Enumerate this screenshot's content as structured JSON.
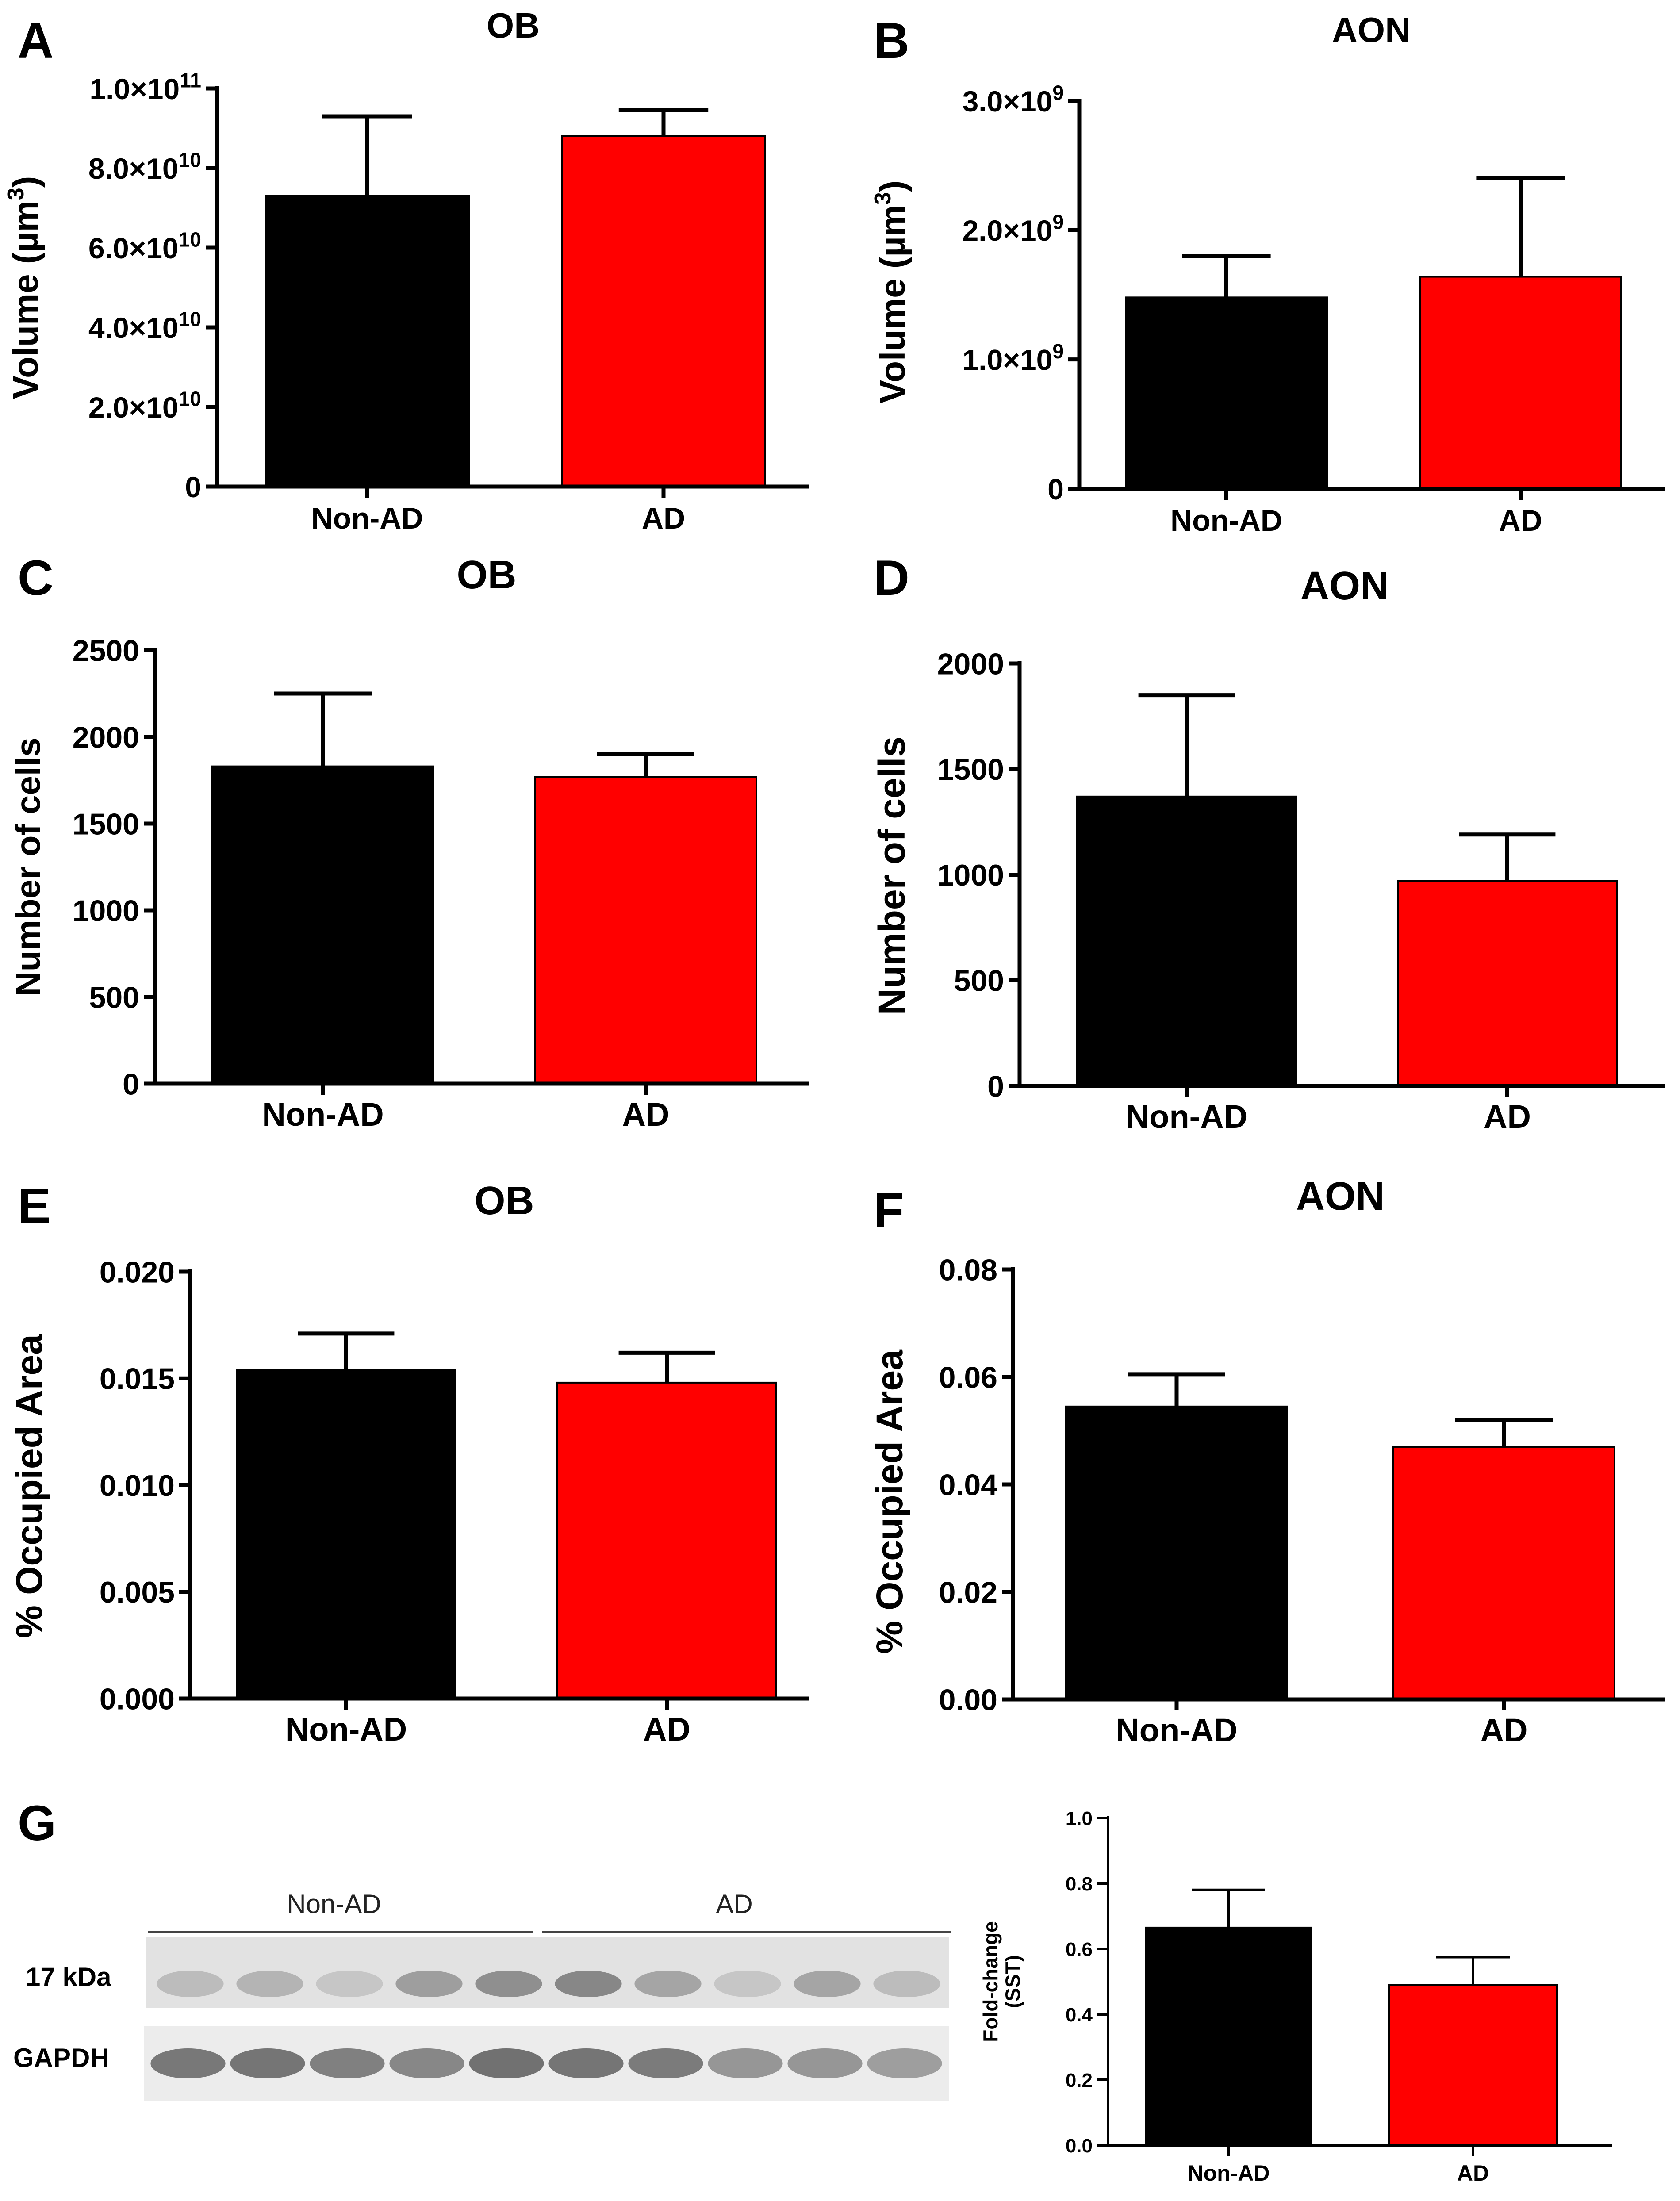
{
  "chart_data": [
    {
      "panel": "A",
      "type": "bar",
      "title": "OB",
      "ylabel": "Volume (µm³)",
      "ylabel_main": "Volume (µm",
      "ylabel_sup": "3",
      "ylabel_end": ")",
      "ylim": [
        0,
        100000000000
      ],
      "yticks": [
        {
          "v": 0,
          "b": "0",
          "e": ""
        },
        {
          "v": 20000000000,
          "b": "2.0×10",
          "e": "10"
        },
        {
          "v": 40000000000,
          "b": "4.0×10",
          "e": "10"
        },
        {
          "v": 60000000000,
          "b": "6.0×10",
          "e": "10"
        },
        {
          "v": 80000000000,
          "b": "8.0×10",
          "e": "10"
        },
        {
          "v": 100000000000,
          "b": "1.0×10",
          "e": "11"
        }
      ],
      "categories": [
        "Non-AD",
        "AD"
      ],
      "values": [
        73000000000,
        88000000000
      ],
      "errors": [
        20000000000,
        6500000000
      ],
      "colors": [
        "#000000",
        "#ff0000"
      ]
    },
    {
      "panel": "B",
      "type": "bar",
      "title": "AON",
      "ylabel": "Volume (µm³)",
      "ylabel_main": "Volume (µm",
      "ylabel_sup": "3",
      "ylabel_end": ")",
      "ylim": [
        0,
        3000000000
      ],
      "yticks": [
        {
          "v": 0,
          "b": "0",
          "e": ""
        },
        {
          "v": 1000000000,
          "b": "1.0×10",
          "e": "9"
        },
        {
          "v": 2000000000,
          "b": "2.0×10",
          "e": "9"
        },
        {
          "v": 3000000000,
          "b": "3.0×10",
          "e": "9"
        }
      ],
      "categories": [
        "Non-AD",
        "AD"
      ],
      "values": [
        1480000000,
        1640000000
      ],
      "errors": [
        320000000,
        760000000
      ],
      "colors": [
        "#000000",
        "#ff0000"
      ]
    },
    {
      "panel": "C",
      "type": "bar",
      "title": "OB",
      "ylabel": "Number of cells",
      "ylim": [
        0,
        2500
      ],
      "yticks": [
        {
          "v": 0,
          "b": "0"
        },
        {
          "v": 500,
          "b": "500"
        },
        {
          "v": 1000,
          "b": "1000"
        },
        {
          "v": 1500,
          "b": "1500"
        },
        {
          "v": 2000,
          "b": "2000"
        },
        {
          "v": 2500,
          "b": "2500"
        }
      ],
      "categories": [
        "Non-AD",
        "AD"
      ],
      "values": [
        1830,
        1770
      ],
      "errors": [
        420,
        130
      ],
      "colors": [
        "#000000",
        "#ff0000"
      ]
    },
    {
      "panel": "D",
      "type": "bar",
      "title": "AON",
      "ylabel": "Number of cells",
      "ylim": [
        0,
        2000
      ],
      "yticks": [
        {
          "v": 0,
          "b": "0"
        },
        {
          "v": 500,
          "b": "500"
        },
        {
          "v": 1000,
          "b": "1000"
        },
        {
          "v": 1500,
          "b": "1500"
        },
        {
          "v": 2000,
          "b": "2000"
        }
      ],
      "categories": [
        "Non-AD",
        "AD"
      ],
      "values": [
        1370,
        970
      ],
      "errors": [
        480,
        220
      ],
      "colors": [
        "#000000",
        "#ff0000"
      ]
    },
    {
      "panel": "E",
      "type": "bar",
      "title": "OB",
      "ylabel": "% Occupied Area",
      "ylim": [
        0,
        0.02
      ],
      "yticks": [
        {
          "v": 0,
          "b": "0.000"
        },
        {
          "v": 0.005,
          "b": "0.005"
        },
        {
          "v": 0.01,
          "b": "0.010"
        },
        {
          "v": 0.015,
          "b": "0.015"
        },
        {
          "v": 0.02,
          "b": "0.020"
        }
      ],
      "categories": [
        "Non-AD",
        "AD"
      ],
      "values": [
        0.0154,
        0.0148
      ],
      "errors": [
        0.0017,
        0.0014
      ],
      "colors": [
        "#000000",
        "#ff0000"
      ]
    },
    {
      "panel": "F",
      "type": "bar",
      "title": "AON",
      "ylabel": "% Occupied Area",
      "ylim": [
        0,
        0.08
      ],
      "yticks": [
        {
          "v": 0,
          "b": "0.00"
        },
        {
          "v": 0.02,
          "b": "0.02"
        },
        {
          "v": 0.04,
          "b": "0.04"
        },
        {
          "v": 0.06,
          "b": "0.06"
        },
        {
          "v": 0.08,
          "b": "0.08"
        }
      ],
      "categories": [
        "Non-AD",
        "AD"
      ],
      "values": [
        0.0545,
        0.047
      ],
      "errors": [
        0.006,
        0.005
      ],
      "colors": [
        "#000000",
        "#ff0000"
      ]
    },
    {
      "panel": "G",
      "type": "bar",
      "title": "",
      "ylabel": "Fold-change (SST)",
      "ylabel_line1": "Fold-change",
      "ylabel_line2": "(SST)",
      "ylim": [
        0,
        1.0
      ],
      "yticks": [
        {
          "v": 0,
          "b": "0.0"
        },
        {
          "v": 0.2,
          "b": "0.2"
        },
        {
          "v": 0.4,
          "b": "0.4"
        },
        {
          "v": 0.6,
          "b": "0.6"
        },
        {
          "v": 0.8,
          "b": "0.8"
        },
        {
          "v": 1.0,
          "b": "1.0"
        }
      ],
      "categories": [
        "Non-AD",
        "AD"
      ],
      "values": [
        0.665,
        0.49
      ],
      "errors": [
        0.115,
        0.085
      ],
      "colors": [
        "#000000",
        "#ff0000"
      ]
    }
  ],
  "blot": {
    "panel": "G",
    "group_labels": [
      "Non-AD",
      "AD"
    ],
    "row_labels": [
      "17 kDa",
      "GAPDH"
    ],
    "sst_band_darkness": [
      0.25,
      0.3,
      0.18,
      0.45,
      0.55,
      0.6,
      0.4,
      0.18,
      0.4,
      0.25
    ],
    "gapdh_band_darkness": [
      0.7,
      0.72,
      0.65,
      0.6,
      0.75,
      0.72,
      0.68,
      0.5,
      0.5,
      0.45
    ]
  }
}
